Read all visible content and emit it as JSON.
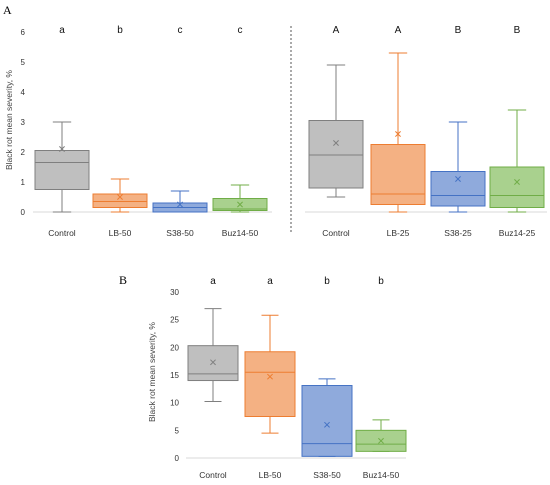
{
  "panel_labels": {
    "a": "A",
    "b": "B"
  },
  "chart_data": [
    {
      "type": "box",
      "panel": "A",
      "ylabel": "Black rot mean severity, %",
      "ylim": [
        0,
        6
      ],
      "yticks": [
        "0",
        "1",
        "2",
        "3",
        "4",
        "5",
        "6"
      ],
      "grid": false,
      "categories": [
        "Control",
        "LB-50",
        "S38-50",
        "Buz14-50"
      ],
      "letters": [
        "a",
        "b",
        "c",
        "c"
      ],
      "colors": [
        "#bfbfbf",
        "#f4b183",
        "#8faadc",
        "#a9d18e"
      ],
      "edge_colors": [
        "#7f7f7f",
        "#ed7d31",
        "#4472c4",
        "#70ad47"
      ],
      "boxes": [
        {
          "min": 0.0,
          "q1": 0.75,
          "median": 1.65,
          "q3": 2.05,
          "max": 3.0,
          "mean": 2.1
        },
        {
          "min": 0.0,
          "q1": 0.15,
          "median": 0.35,
          "q3": 0.6,
          "max": 1.1,
          "mean": 0.5
        },
        {
          "min": 0.0,
          "q1": 0.0,
          "median": 0.15,
          "q3": 0.3,
          "max": 0.7,
          "mean": 0.25
        },
        {
          "min": 0.0,
          "q1": 0.05,
          "median": 0.1,
          "q3": 0.45,
          "max": 0.9,
          "mean": 0.25
        }
      ]
    },
    {
      "type": "box",
      "panel": "A",
      "ylabel": "",
      "ylim": [
        0,
        6
      ],
      "grid": false,
      "categories": [
        "Control",
        "LB-25",
        "S38-25",
        "Buz14-25"
      ],
      "letters": [
        "A",
        "A",
        "B",
        "B"
      ],
      "colors": [
        "#bfbfbf",
        "#f4b183",
        "#8faadc",
        "#a9d18e"
      ],
      "edge_colors": [
        "#7f7f7f",
        "#ed7d31",
        "#4472c4",
        "#70ad47"
      ],
      "boxes": [
        {
          "min": 0.5,
          "q1": 0.8,
          "median": 1.9,
          "q3": 3.05,
          "max": 4.9,
          "mean": 2.3
        },
        {
          "min": 0.0,
          "q1": 0.25,
          "median": 0.6,
          "q3": 2.25,
          "max": 5.3,
          "mean": 2.6
        },
        {
          "min": 0.0,
          "q1": 0.2,
          "median": 0.55,
          "q3": 1.35,
          "max": 3.0,
          "mean": 1.1
        },
        {
          "min": 0.0,
          "q1": 0.15,
          "median": 0.55,
          "q3": 1.5,
          "max": 3.4,
          "mean": 1.0
        }
      ]
    },
    {
      "type": "box",
      "panel": "B",
      "ylabel": "Black rot mean severity, %",
      "ylim": [
        0,
        30
      ],
      "yticks": [
        "0",
        "5",
        "10",
        "15",
        "20",
        "25",
        "30"
      ],
      "grid": false,
      "categories": [
        "Control",
        "LB-50",
        "S38-50",
        "Buz14-50"
      ],
      "letters": [
        "a",
        "a",
        "b",
        "b"
      ],
      "colors": [
        "#bfbfbf",
        "#f4b183",
        "#8faadc",
        "#a9d18e"
      ],
      "edge_colors": [
        "#7f7f7f",
        "#ed7d31",
        "#4472c4",
        "#70ad47"
      ],
      "boxes": [
        {
          "min": 10.2,
          "q1": 14.0,
          "median": 15.2,
          "q3": 20.3,
          "max": 27.0,
          "mean": 17.3
        },
        {
          "min": 4.5,
          "q1": 7.5,
          "median": 15.5,
          "q3": 19.2,
          "max": 25.8,
          "mean": 14.7
        },
        {
          "min": 0.3,
          "q1": 0.3,
          "median": 2.6,
          "q3": 13.1,
          "max": 14.3,
          "mean": 6.0
        },
        {
          "min": 1.2,
          "q1": 1.2,
          "median": 2.5,
          "q3": 5.0,
          "max": 6.9,
          "mean": 3.1
        }
      ]
    }
  ]
}
